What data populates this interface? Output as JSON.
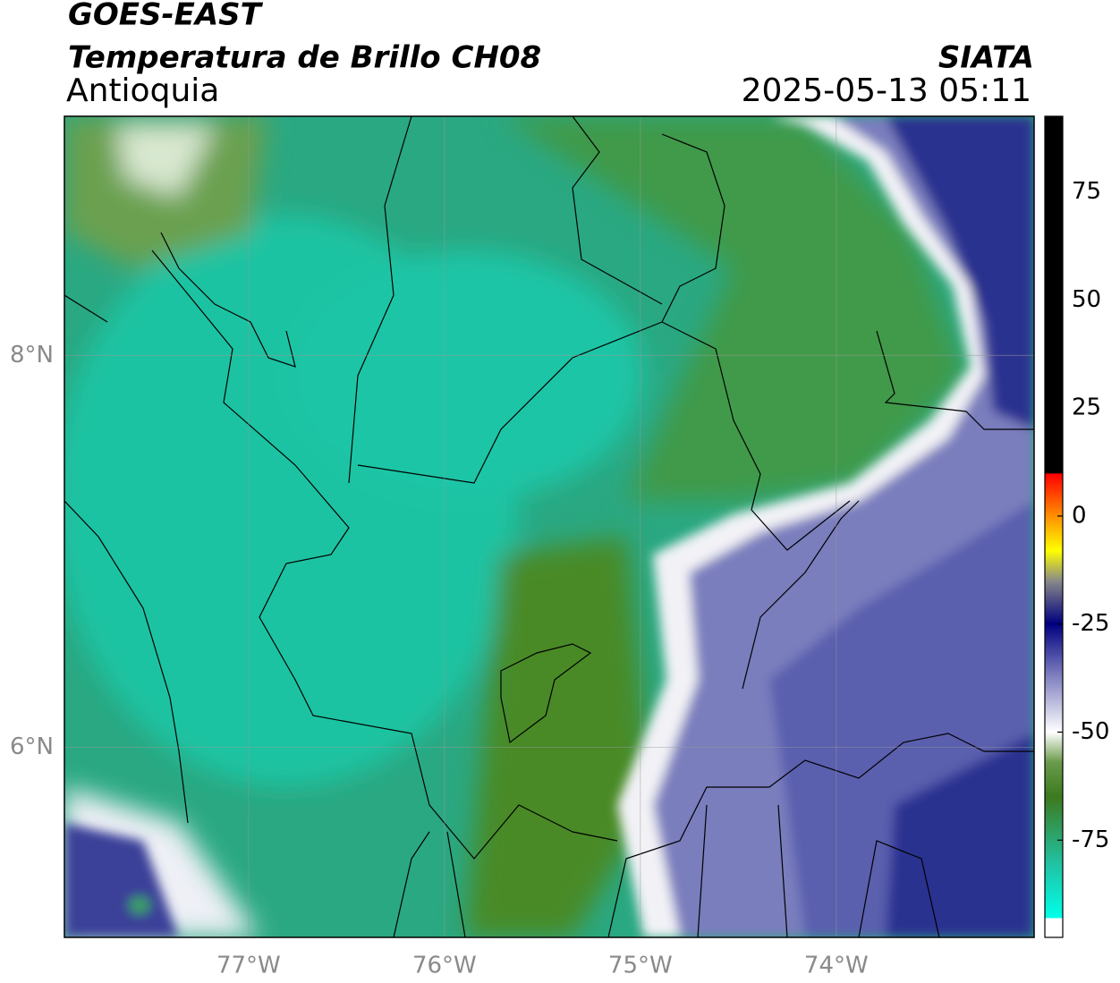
{
  "header": {
    "title": "GOES-EAST",
    "subtitle": "Temperatura de Brillo CH08",
    "region": "Antioquia",
    "brand": "SIATA",
    "datetime": "2025-05-13 05:11"
  },
  "map": {
    "xlim": [
      -77.94,
      -72.99
    ],
    "ylim": [
      5.03,
      9.22
    ],
    "xticks": [
      {
        "value": -77,
        "label": "77°W"
      },
      {
        "value": -76,
        "label": "76°W"
      },
      {
        "value": -75,
        "label": "75°W"
      },
      {
        "value": -74,
        "label": "74°W"
      }
    ],
    "yticks": [
      {
        "value": 8,
        "label": "8°N"
      },
      {
        "value": 6,
        "label": "6°N"
      }
    ],
    "grid": true
  },
  "colorbar": {
    "clim": [
      -97.5,
      92.5
    ],
    "ticks": [
      75,
      50,
      25,
      0,
      -25,
      -50,
      -75
    ]
  }
}
